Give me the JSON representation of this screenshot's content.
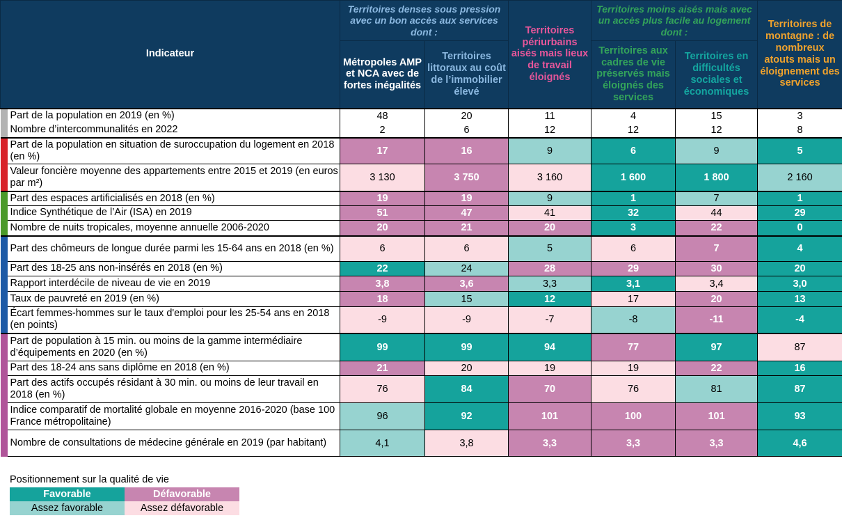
{
  "header": {
    "indicator": "Indicateur",
    "group_dense": "Territoires denses sous pression avec un bon accès aux services dont :",
    "group_moins_aises": "Territoires moins aisés mais avec un accès plus facile au logement dont :",
    "columns": [
      "Métropoles AMP et NCA avec de fortes inégalités",
      "Territoires littoraux au coût de l’immobilier élevé",
      "Territoires périurbains aisés mais lieux de travail éloignés",
      "Territoires aux cadres de vie préservés mais éloignés des services",
      "Territoires en difficultés sociales et économiques",
      "Territoires de montagne : de nombreux atouts mais un éloignement des services"
    ]
  },
  "colors": {
    "header_bg": "#0f3b5f",
    "favorable": "#15a39c",
    "defavorable": "#c785b0",
    "assez_favorable": "#97d3d0",
    "assez_defavorable": "#fcdde3",
    "category_general": "#b3b3b3",
    "category_logement": "#d8232a",
    "category_environnement": "#4b9a2a",
    "category_emploi": "#1d5aa6",
    "category_services": "#b0559a"
  },
  "rows": [
    {
      "label": "Part de la population en 2019 (en %)",
      "values": [
        "48",
        "20",
        "11",
        "4",
        "15",
        "3"
      ]
    },
    {
      "label": "Nombre d’intercommunalités en 2022",
      "values": [
        "2",
        "6",
        "12",
        "12",
        "12",
        "8"
      ]
    },
    {
      "label": "Part de la population en situation de suroccupation du logement en 2018 (en %)",
      "values": [
        "17",
        "16",
        "9",
        "6",
        "9",
        "5"
      ]
    },
    {
      "label": "Valeur foncière moyenne des appartements entre 2015 et 2019 (en euros par m²)",
      "values": [
        "3 130",
        "3 750",
        "3 160",
        "1 600",
        "1 800",
        "2 160"
      ]
    },
    {
      "label": "Part des espaces artificialisés en 2018 (en %)",
      "values": [
        "19",
        "19",
        "9",
        "1",
        "7",
        "1"
      ]
    },
    {
      "label": "Indice Synthétique de l’Air (ISA) en 2019",
      "values": [
        "51",
        "47",
        "41",
        "32",
        "44",
        "29"
      ]
    },
    {
      "label": "Nombre de nuits tropicales, moyenne annuelle 2006-2020",
      "values": [
        "20",
        "21",
        "20",
        "3",
        "22",
        "0"
      ]
    },
    {
      "label": "Part des chômeurs de longue durée parmi les 15-64 ans en 2018 (en %)",
      "values": [
        "6",
        "6",
        "5",
        "6",
        "7",
        "4"
      ]
    },
    {
      "label": "Part des 18-25 ans non-insérés en 2018 (en %)",
      "values": [
        "22",
        "24",
        "28",
        "29",
        "30",
        "20"
      ]
    },
    {
      "label": "Rapport interdécile de niveau de vie en 2019",
      "values": [
        "3,8",
        "3,6",
        "3,3",
        "3,1",
        "3,4",
        "3,0"
      ]
    },
    {
      "label": "Taux de pauvreté en 2019 (en %)",
      "values": [
        "18",
        "15",
        "12",
        "17",
        "20",
        "13"
      ]
    },
    {
      "label": "Écart femmes-hommes sur le taux d'emploi pour les 25-54 ans en 2018 (en points)",
      "values": [
        "-9",
        "-9",
        "-7",
        "-8",
        "-11",
        "-4"
      ]
    },
    {
      "label": "Part de population à 15 min. ou moins de la gamme intermédiaire d’équipements en 2020 (en %)",
      "values": [
        "99",
        "99",
        "94",
        "77",
        "97",
        "87"
      ]
    },
    {
      "label": "Part des 18-24 ans sans diplôme en 2018 (en %)",
      "values": [
        "21",
        "20",
        "19",
        "19",
        "22",
        "16"
      ]
    },
    {
      "label": "Part des actifs occupés résidant à 30 min. ou moins de leur travail en 2018  (en %)",
      "values": [
        "76",
        "84",
        "70",
        "76",
        "81",
        "87"
      ]
    },
    {
      "label": "Indice comparatif de mortalité globale en moyenne 2016-2020 (base 100 France métropolitaine)",
      "values": [
        "96",
        "92",
        "101",
        "100",
        "101",
        "93"
      ]
    },
    {
      "label": "Nombre de consultations de médecine générale en 2019 (par habitant)",
      "values": [
        "4,1",
        "3,8",
        "3,3",
        "3,3",
        "3,3",
        "4,6"
      ]
    }
  ],
  "legend": {
    "title": "Positionnement sur la qualité de vie",
    "favorable": "Favorable",
    "defavorable": "Défavorable",
    "assez_favorable": "Assez favorable",
    "assez_defavorable": "Assez défavorable"
  }
}
